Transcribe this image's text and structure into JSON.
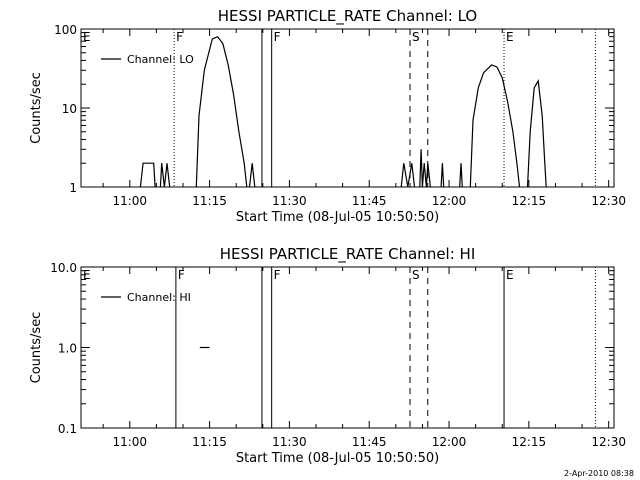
{
  "timestamp": "2-Apr-2010 08:38",
  "chart_data": [
    {
      "type": "line",
      "title": "HESSI PARTICLE_RATE Channel: LO",
      "xlabel": "Start Time (08-Jul-05 10:50:50)",
      "ylabel": "Counts/sec",
      "yscale": "log",
      "xlim": [
        "10:50:50",
        "12:31:00"
      ],
      "ylim": [
        1,
        100
      ],
      "xticks": [
        "11:00",
        "11:15",
        "11:30",
        "11:45",
        "12:00",
        "12:15",
        "12:30"
      ],
      "yticks": [
        "1",
        "10",
        "100"
      ],
      "legend": {
        "position": "top-left",
        "entries": [
          "Channel: LO"
        ]
      },
      "series": [
        {
          "name": "Channel: LO",
          "segments": [
            [
              [
                "11:02:00",
                1
              ],
              [
                "11:02:30",
                2
              ],
              [
                "11:04:30",
                2
              ],
              [
                "11:04:45",
                1
              ]
            ],
            [
              [
                "11:05:45",
                1
              ],
              [
                "11:06:00",
                2
              ],
              [
                "11:06:30",
                1
              ],
              [
                "11:07:00",
                2
              ],
              [
                "11:07:30",
                1
              ]
            ],
            [
              [
                "11:12:30",
                1
              ],
              [
                "11:13:00",
                8
              ],
              [
                "11:14:00",
                30
              ],
              [
                "11:15:30",
                75
              ],
              [
                "11:16:30",
                80
              ],
              [
                "11:17:30",
                65
              ],
              [
                "11:18:30",
                35
              ],
              [
                "11:19:30",
                15
              ],
              [
                "11:20:30",
                5
              ],
              [
                "11:21:30",
                2
              ],
              [
                "11:22:00",
                1
              ]
            ],
            [
              [
                "11:22:30",
                1
              ],
              [
                "11:23:00",
                2
              ],
              [
                "11:23:30",
                1
              ]
            ],
            [
              [
                "11:51:00",
                1
              ],
              [
                "11:51:30",
                2
              ],
              [
                "11:52:15",
                1
              ],
              [
                "11:53:00",
                2
              ],
              [
                "11:53:30",
                1
              ]
            ],
            [
              [
                "11:54:30",
                1
              ],
              [
                "11:54:45",
                3
              ],
              [
                "11:55:00",
                1
              ],
              [
                "11:55:20",
                2
              ],
              [
                "11:55:45",
                1
              ],
              [
                "11:56:00",
                2
              ],
              [
                "11:56:30",
                1
              ]
            ],
            [
              [
                "11:58:30",
                1
              ],
              [
                "11:58:45",
                2
              ],
              [
                "11:59:00",
                1
              ]
            ],
            [
              [
                "12:02:00",
                1
              ],
              [
                "12:02:15",
                2
              ],
              [
                "12:02:30",
                1
              ]
            ],
            [
              [
                "12:04:00",
                1
              ],
              [
                "12:04:30",
                7
              ],
              [
                "12:05:30",
                18
              ],
              [
                "12:06:30",
                28
              ],
              [
                "12:08:00",
                35
              ],
              [
                "12:09:00",
                33
              ],
              [
                "12:10:00",
                24
              ],
              [
                "12:11:00",
                12
              ],
              [
                "12:12:00",
                5
              ],
              [
                "12:12:45",
                2
              ],
              [
                "12:13:15",
                1
              ]
            ],
            [
              [
                "12:14:45",
                1
              ],
              [
                "12:15:15",
                5
              ],
              [
                "12:16:00",
                18
              ],
              [
                "12:16:45",
                22
              ],
              [
                "12:17:30",
                8
              ],
              [
                "12:18:00",
                2
              ],
              [
                "12:18:15",
                1
              ]
            ]
          ]
        }
      ],
      "markers": [
        {
          "time": "10:50:50",
          "label": "E",
          "style": "dotted"
        },
        {
          "time": "11:08:20",
          "label": "F",
          "style": "dotted"
        },
        {
          "time": "11:24:50",
          "label": "",
          "style": "solid"
        },
        {
          "time": "11:26:40",
          "label": "F",
          "style": "solid"
        },
        {
          "time": "11:52:40",
          "label": "S",
          "style": "dashed"
        },
        {
          "time": "11:56:00",
          "label": "",
          "style": "dashed"
        },
        {
          "time": "12:10:20",
          "label": "E",
          "style": "dotted"
        },
        {
          "time": "12:27:30",
          "label": "",
          "style": "dotted"
        }
      ]
    },
    {
      "type": "line",
      "title": "HESSI PARTICLE_RATE Channel: HI",
      "xlabel": "Start Time (08-Jul-05 10:50:50)",
      "ylabel": "Counts/sec",
      "yscale": "log",
      "xlim": [
        "10:50:50",
        "12:31:00"
      ],
      "ylim": [
        0.1,
        10
      ],
      "xticks": [
        "11:00",
        "11:15",
        "11:30",
        "11:45",
        "12:00",
        "12:15",
        "12:30"
      ],
      "yticks": [
        "0.1",
        "1.0",
        "10.0"
      ],
      "legend": {
        "position": "top-left",
        "entries": [
          "Channel: HI"
        ]
      },
      "series": [
        {
          "name": "Channel: HI",
          "segments": [
            [
              [
                "11:13:10",
                1
              ],
              [
                "11:15:00",
                1
              ]
            ]
          ]
        }
      ],
      "markers": [
        {
          "time": "10:50:50",
          "label": "E",
          "style": "dotted"
        },
        {
          "time": "11:08:40",
          "label": "F",
          "style": "solid"
        },
        {
          "time": "11:24:50",
          "label": "",
          "style": "solid"
        },
        {
          "time": "11:26:40",
          "label": "F",
          "style": "solid"
        },
        {
          "time": "11:52:40",
          "label": "S",
          "style": "dashed"
        },
        {
          "time": "11:56:00",
          "label": "",
          "style": "dashed"
        },
        {
          "time": "12:10:20",
          "label": "E",
          "style": "solid"
        },
        {
          "time": "12:27:30",
          "label": "",
          "style": "dotted"
        }
      ]
    }
  ]
}
